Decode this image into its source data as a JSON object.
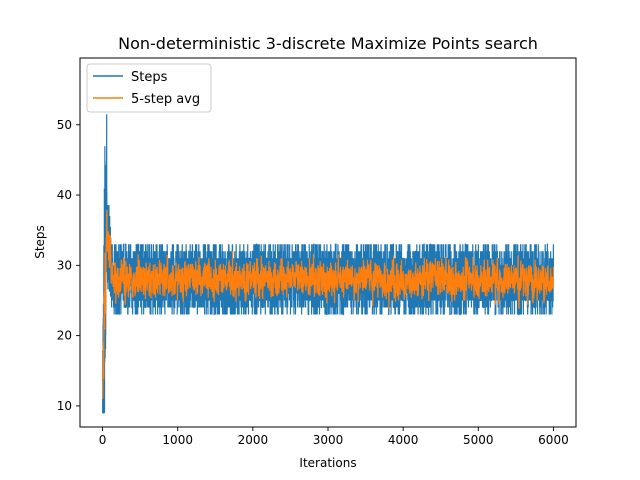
{
  "chart_data": {
    "type": "line",
    "title": "Non-deterministic 3-discrete Maximize Points search",
    "xlabel": "Iterations",
    "ylabel": "Steps",
    "xlim": [
      -300,
      6300
    ],
    "ylim": [
      7,
      59.5
    ],
    "x_ticks": [
      0,
      1000,
      2000,
      3000,
      4000,
      5000,
      6000
    ],
    "y_ticks": [
      10,
      20,
      30,
      40,
      50
    ],
    "x_tick_labels": [
      "0",
      "1000",
      "2000",
      "3000",
      "4000",
      "5000",
      "6000"
    ],
    "y_tick_labels": [
      "10",
      "20",
      "30",
      "40",
      "50"
    ],
    "grid": false,
    "legend_position": "top-left",
    "series": [
      {
        "name": "Steps",
        "color": "#1f77b4",
        "summary": {
          "x_range": [
            0,
            6000
          ],
          "initial_value": 9,
          "initial_peak": 51.5,
          "burn_in_end": 120,
          "steady_range": [
            23,
            33
          ],
          "steady_mean": 28
        }
      },
      {
        "name": "5-step avg",
        "color": "#ff7f0e",
        "summary": {
          "x_range": [
            4,
            6000
          ],
          "initial_value": 11,
          "initial_peak": 42.5,
          "burn_in_end": 120,
          "steady_range": [
            24.5,
            31.5
          ],
          "steady_mean": 28
        }
      }
    ]
  }
}
